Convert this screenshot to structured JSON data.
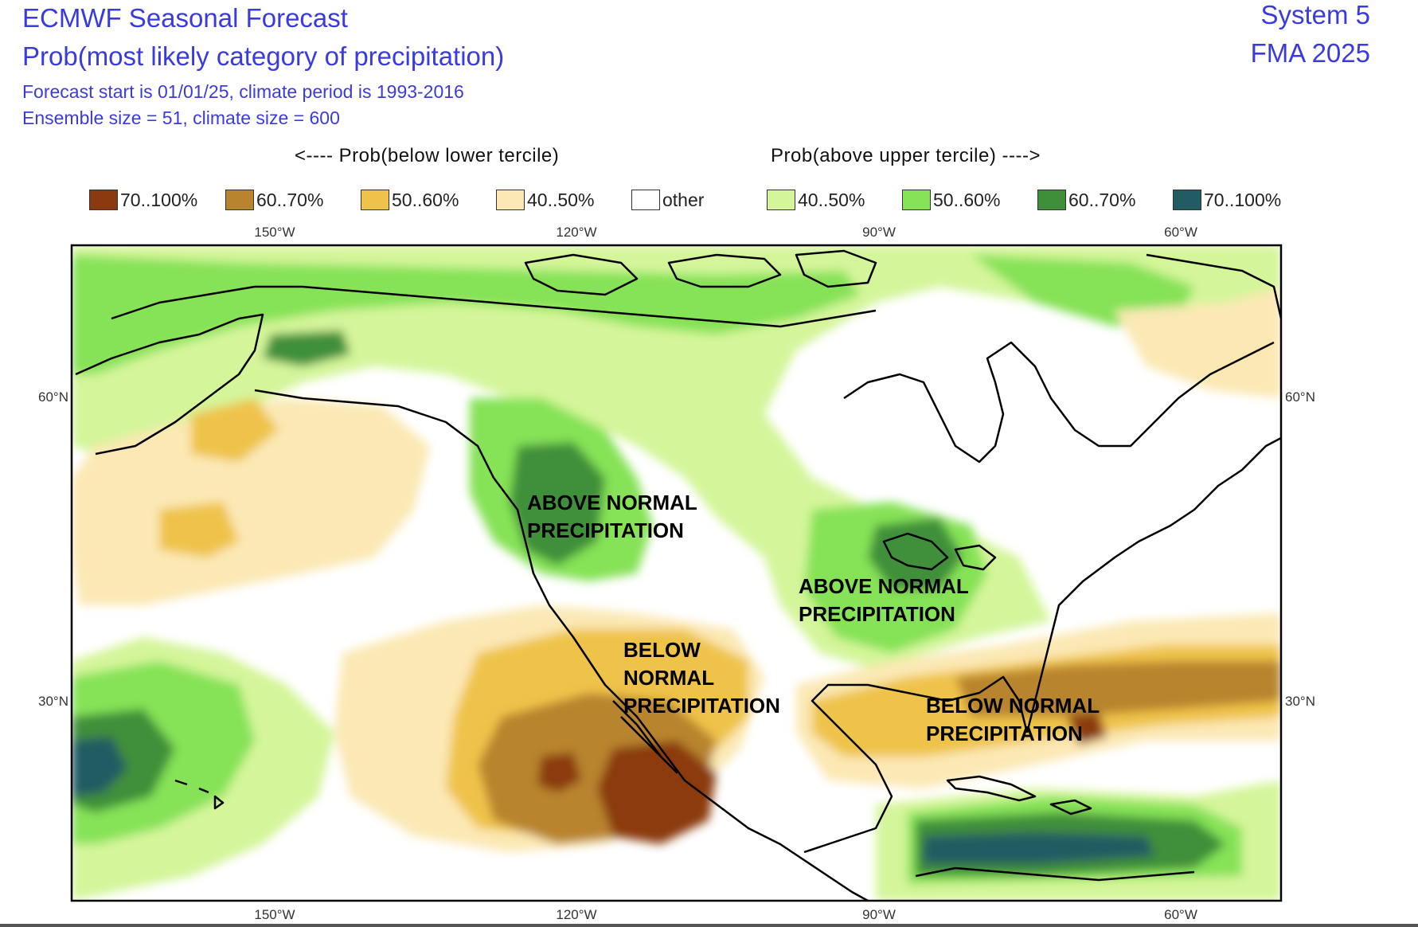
{
  "header": {
    "title": "ECMWF Seasonal Forecast",
    "subtitle": "Prob(most likely category of precipitation)",
    "forecast_start": "Forecast start is 01/01/25, climate period is 1993-2016",
    "ensemble": "Ensemble size = 51, climate size = 600",
    "system": "System 5",
    "period": "FMA 2025"
  },
  "legend": {
    "below_heading": "<---- Prob(below lower tercile)",
    "above_heading": "Prob(above upper tercile) ---->",
    "items": [
      {
        "label": "70..100%",
        "color": "#8b3a10"
      },
      {
        "label": "60..70%",
        "color": "#b8842e"
      },
      {
        "label": "50..60%",
        "color": "#efc34a"
      },
      {
        "label": "40..50%",
        "color": "#fbe8b4"
      },
      {
        "label": "other",
        "color": "#ffffff"
      },
      {
        "label": "40..50%",
        "color": "#d4f59a"
      },
      {
        "label": "50..60%",
        "color": "#86e257"
      },
      {
        "label": "60..70%",
        "color": "#3f8f3a"
      },
      {
        "label": "70..100%",
        "color": "#225c63"
      }
    ]
  },
  "axes": {
    "lon_labels": [
      "150°W",
      "120°W",
      "90°W",
      "60°W"
    ],
    "lat_labels": [
      "60°N",
      "30°N"
    ]
  },
  "annotations": [
    {
      "id": "above-west",
      "lines": [
        "ABOVE NORMAL",
        "PRECIPITATION"
      ]
    },
    {
      "id": "above-east",
      "lines": [
        "ABOVE NORMAL",
        "PRECIPITATION"
      ]
    },
    {
      "id": "below-west",
      "lines": [
        "BELOW",
        "NORMAL",
        "PRECIPITATION"
      ]
    },
    {
      "id": "below-east",
      "lines": [
        "BELOW NORMAL",
        "PRECIPITATION"
      ]
    }
  ]
}
